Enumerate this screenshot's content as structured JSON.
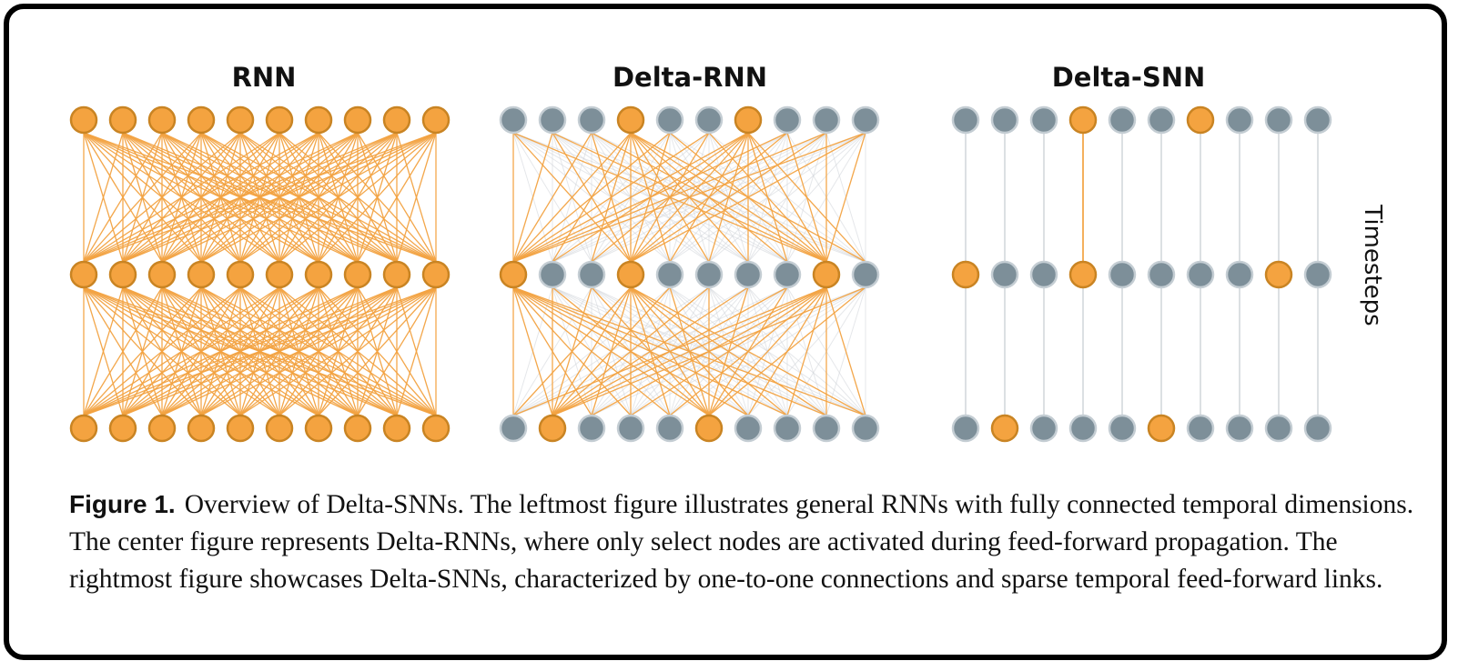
{
  "panels": [
    {
      "title": "RNN",
      "rows": [
        [
          1,
          1,
          1,
          1,
          1,
          1,
          1,
          1,
          1,
          1
        ],
        [
          1,
          1,
          1,
          1,
          1,
          1,
          1,
          1,
          1,
          1
        ],
        [
          1,
          1,
          1,
          1,
          1,
          1,
          1,
          1,
          1,
          1
        ]
      ],
      "connection": "full"
    },
    {
      "title": "Delta-RNN",
      "rows": [
        [
          0,
          0,
          0,
          1,
          0,
          0,
          1,
          0,
          0,
          0
        ],
        [
          1,
          0,
          0,
          1,
          0,
          0,
          0,
          0,
          1,
          0
        ],
        [
          0,
          1,
          0,
          0,
          0,
          1,
          0,
          0,
          0,
          0
        ]
      ],
      "connection": "full-sparse-active"
    },
    {
      "title": "Delta-SNN",
      "rows": [
        [
          0,
          0,
          0,
          1,
          0,
          0,
          1,
          0,
          0,
          0
        ],
        [
          1,
          0,
          0,
          1,
          0,
          0,
          0,
          0,
          1,
          0
        ],
        [
          0,
          1,
          0,
          0,
          0,
          1,
          0,
          0,
          0,
          0
        ]
      ],
      "connection": "one-to-one"
    }
  ],
  "axis_label": "Timesteps",
  "colors": {
    "active_fill": "#f4a340",
    "active_stroke": "#c98423",
    "inactive_fill": "#7d8f99",
    "inactive_stroke": "#c4cdd3",
    "active_edge": "#f2a241",
    "inactive_edge": "#cfd4d8"
  },
  "caption": {
    "label": "Figure 1.",
    "text": "Overview of Delta-SNNs. The leftmost figure illustrates general RNNs with fully connected temporal dimensions. The center figure represents Delta-RNNs, where only select nodes are activated during feed-forward propagation. The rightmost figure showcases Delta-SNNs, characterized by one-to-one connections and sparse temporal feed-forward links."
  }
}
